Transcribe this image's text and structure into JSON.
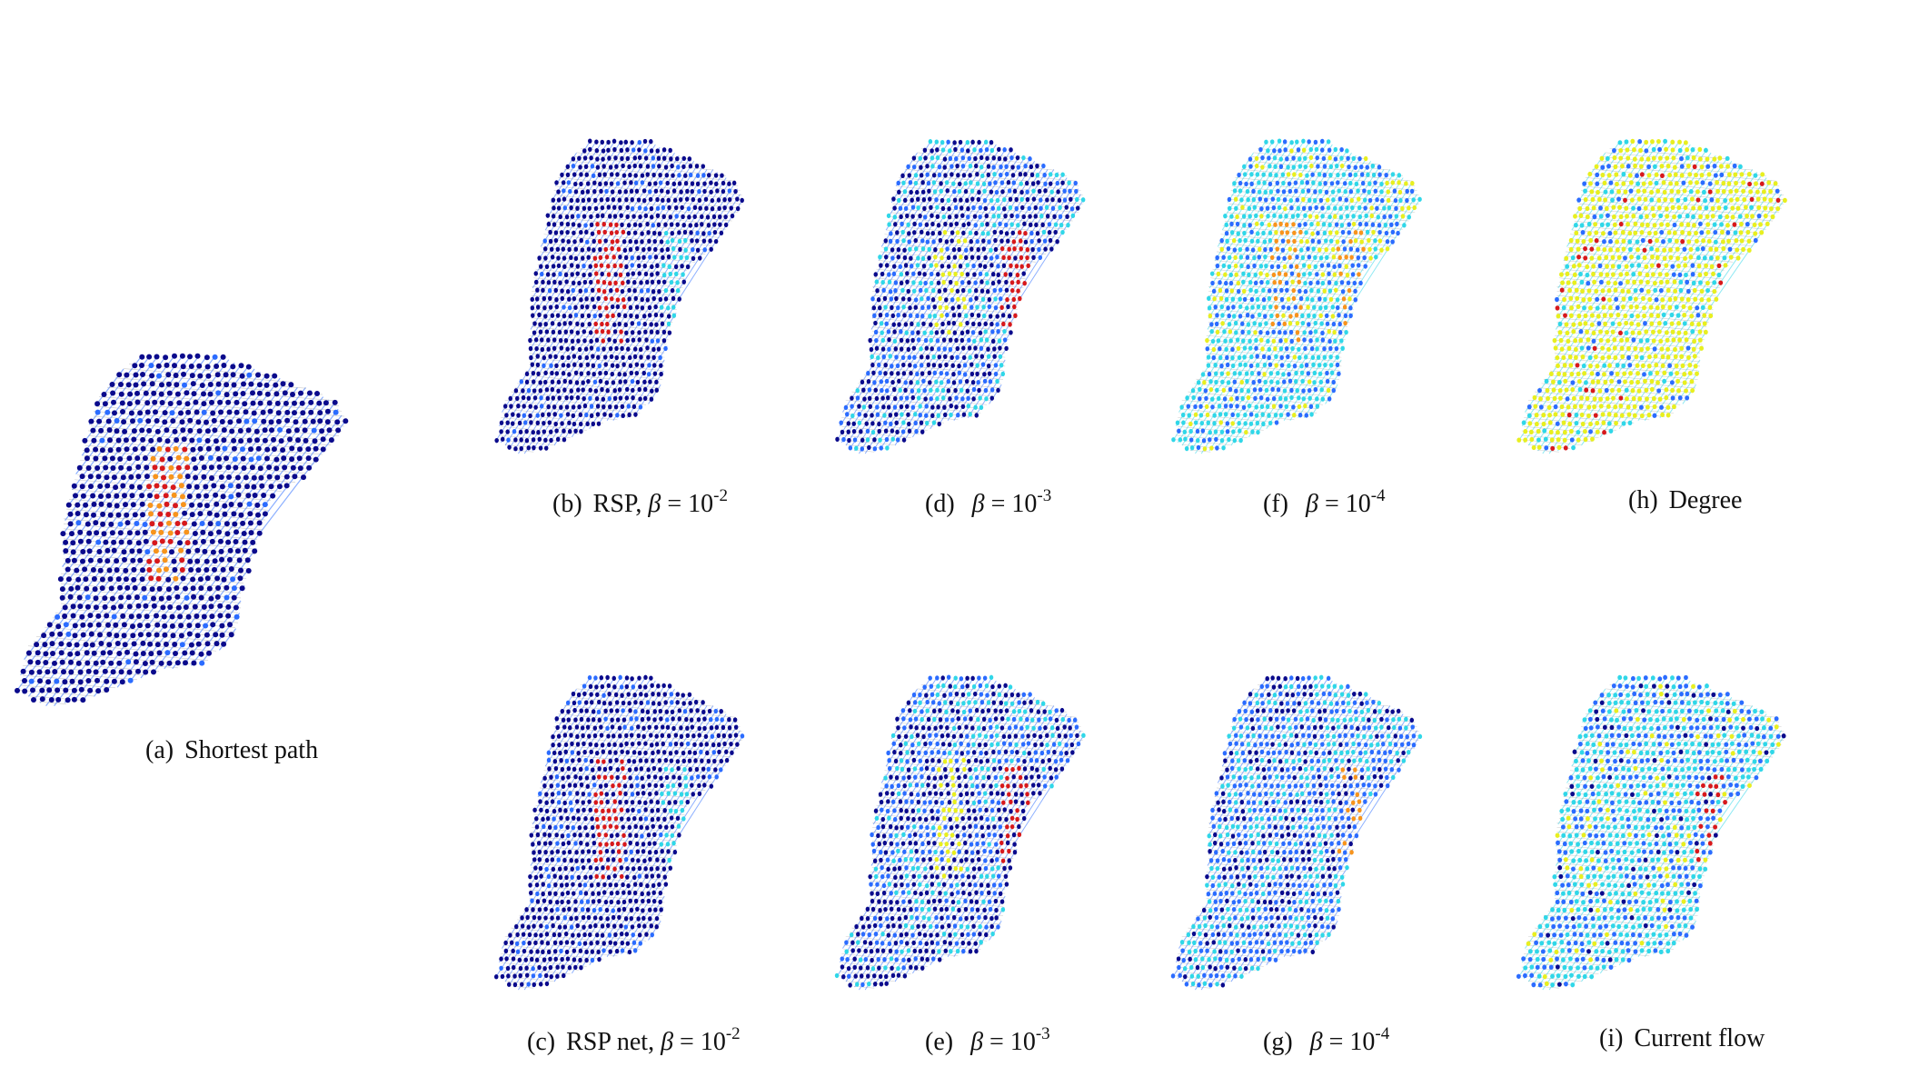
{
  "figure": {
    "panels": [
      {
        "id": "a",
        "label": "(a)",
        "text": "Shortest path",
        "beta_exp": null,
        "scheme": "sparse",
        "seed": 1
      },
      {
        "id": "b",
        "label": "(b)",
        "text": "RSP,",
        "beta_exp": "-2",
        "scheme": "rsp2",
        "seed": 2
      },
      {
        "id": "d",
        "label": "(d)",
        "text": "",
        "beta_exp": "-3",
        "scheme": "rsp3",
        "seed": 3
      },
      {
        "id": "f",
        "label": "(f)",
        "text": "",
        "beta_exp": "-4",
        "scheme": "rsp4",
        "seed": 4
      },
      {
        "id": "h",
        "label": "(h)",
        "text": "Degree",
        "beta_exp": null,
        "scheme": "degree",
        "seed": 5
      },
      {
        "id": "c",
        "label": "(c)",
        "text": "RSP net,",
        "beta_exp": "-2",
        "scheme": "rsp2",
        "seed": 6
      },
      {
        "id": "e",
        "label": "(e)",
        "text": "",
        "beta_exp": "-3",
        "scheme": "rsp3",
        "seed": 7
      },
      {
        "id": "g",
        "label": "(g)",
        "text": "",
        "beta_exp": "-4",
        "scheme": "net4",
        "seed": 8
      },
      {
        "id": "i",
        "label": "(i)",
        "text": "Current flow",
        "beta_exp": null,
        "scheme": "flow",
        "seed": 9
      }
    ],
    "math": {
      "beta": "β",
      "equals": " = ",
      "base": "10"
    },
    "colors": {
      "node_low": "#0a0a8c",
      "node_mid": "#2b6cff",
      "node_cyan": "#30d7e8",
      "node_yellow": "#e8ef20",
      "node_orange": "#f7941d",
      "node_high": "#d7191c",
      "edge": "#9a9a9a"
    }
  }
}
